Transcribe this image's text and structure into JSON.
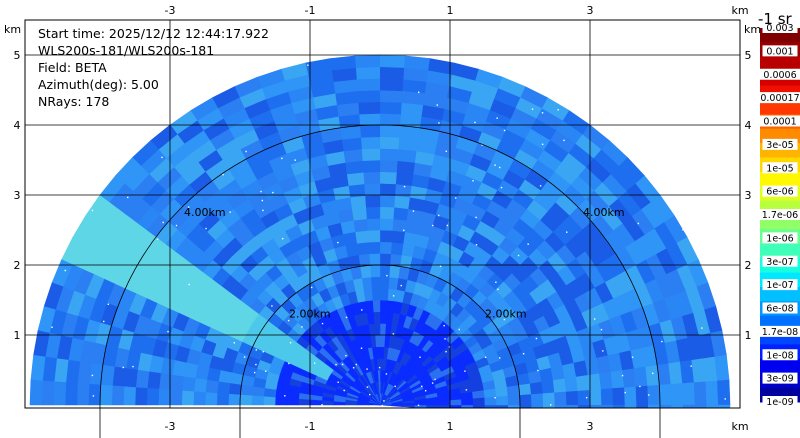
{
  "info": {
    "start_time": "Start time: 2025/12/12 12:44:17.922",
    "instrument": "WLS200s-181/WLS200s-181",
    "field": "Field: BETA",
    "azimuth": "Azimuth(deg): 5.00",
    "nrays": "NRays: 178"
  },
  "colorbar": {
    "title": "-1 sr",
    "labels": [
      "0.003",
      "0.001",
      "0.0006",
      "0.00017",
      "0.0001",
      "3e-05",
      "1e-05",
      "6e-06",
      "1.7e-06",
      "1e-06",
      "3e-07",
      "1e-07",
      "6e-08",
      "1.7e-08",
      "1e-08",
      "3e-09",
      "1e-09"
    ],
    "colors": [
      "#800000",
      "#9b0000",
      "#b80000",
      "#d40000",
      "#f01000",
      "#ff3800",
      "#ff6000",
      "#ff8c00",
      "#ffb400",
      "#ffd800",
      "#fff800",
      "#e0ff20",
      "#b8ff40",
      "#90ff68",
      "#68ff90",
      "#40ffb8",
      "#18ffe0",
      "#00e8ff",
      "#00c0ff",
      "#0098ff",
      "#0070ff",
      "#0048ff",
      "#0020ff",
      "#0000f0",
      "#0000c8",
      "#0000a0"
    ]
  },
  "chart_data": {
    "type": "heatmap",
    "title": "",
    "xlabel": "km",
    "ylabel": "km",
    "xticks": [
      "-3",
      "-1",
      "1",
      "3"
    ],
    "yticks": [
      "1",
      "2",
      "3",
      "4",
      "5"
    ],
    "range_rings": [
      "2.00km",
      "4.00km"
    ],
    "xlim": [
      -5.5,
      5.0
    ],
    "ylim": [
      0,
      5.8
    ],
    "colorscale": "log10 backscatter, 1e-09 to 0.003",
    "field": "BETA",
    "max_range_km": 5.0,
    "grid": true
  }
}
